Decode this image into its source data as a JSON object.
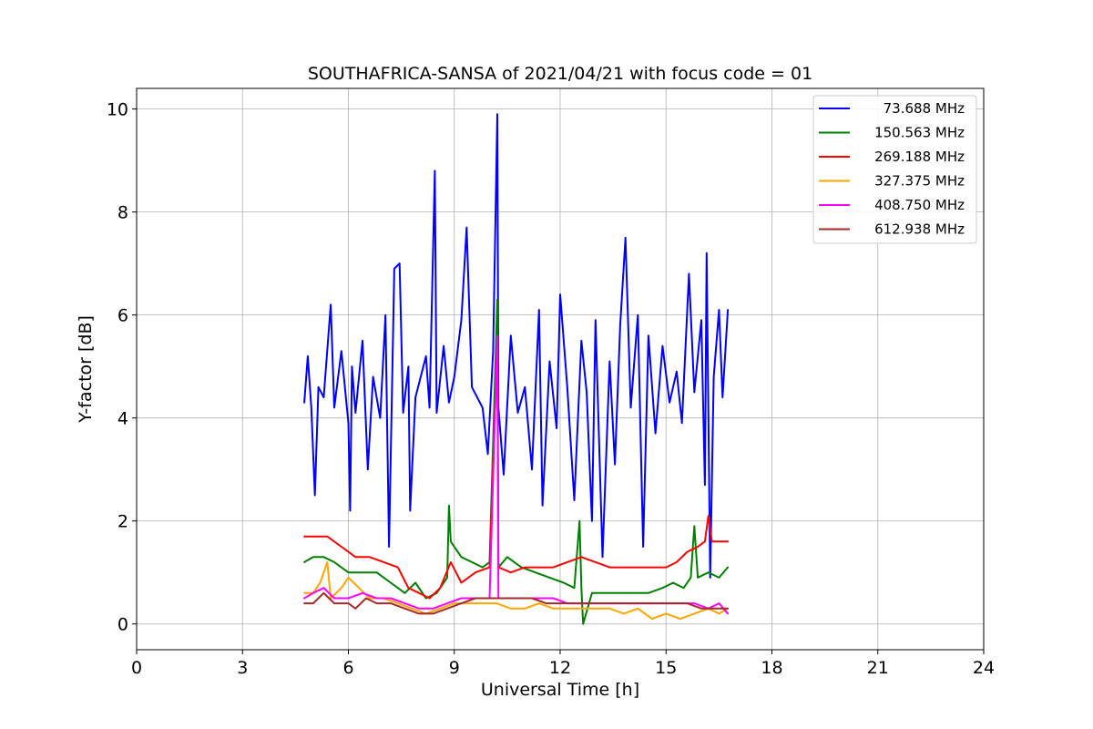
{
  "chart_data": {
    "type": "line",
    "title": "SOUTHAFRICA-SANSA of 2021/04/21 with focus code = 01",
    "xlabel": "Universal Time [h]",
    "ylabel": "Y-factor [dB]",
    "xlim": [
      0,
      24
    ],
    "ylim": [
      -0.5,
      10.4
    ],
    "xticks": [
      0,
      3,
      6,
      9,
      12,
      15,
      18,
      21,
      24
    ],
    "yticks": [
      0,
      2,
      4,
      6,
      8,
      10
    ],
    "grid": true,
    "legend_position": "top-right",
    "series": [
      {
        "name": "73.688 MHz",
        "color": "#0000ff",
        "points": [
          [
            4.75,
            4.3
          ],
          [
            4.85,
            5.2
          ],
          [
            4.95,
            4.2
          ],
          [
            5.05,
            2.5
          ],
          [
            5.15,
            4.6
          ],
          [
            5.3,
            4.4
          ],
          [
            5.5,
            6.2
          ],
          [
            5.6,
            4.2
          ],
          [
            5.8,
            5.3
          ],
          [
            6.0,
            3.9
          ],
          [
            6.05,
            2.2
          ],
          [
            6.1,
            5.0
          ],
          [
            6.2,
            4.1
          ],
          [
            6.4,
            5.5
          ],
          [
            6.55,
            3.0
          ],
          [
            6.7,
            4.8
          ],
          [
            6.9,
            4.0
          ],
          [
            7.05,
            6.0
          ],
          [
            7.15,
            1.5
          ],
          [
            7.3,
            6.9
          ],
          [
            7.45,
            7.0
          ],
          [
            7.55,
            4.1
          ],
          [
            7.7,
            5.0
          ],
          [
            7.75,
            2.2
          ],
          [
            7.9,
            4.4
          ],
          [
            8.2,
            5.2
          ],
          [
            8.3,
            4.2
          ],
          [
            8.45,
            8.8
          ],
          [
            8.5,
            4.1
          ],
          [
            8.7,
            5.4
          ],
          [
            8.85,
            4.3
          ],
          [
            9.0,
            4.8
          ],
          [
            9.2,
            5.9
          ],
          [
            9.35,
            7.7
          ],
          [
            9.5,
            4.6
          ],
          [
            9.8,
            4.2
          ],
          [
            9.95,
            3.3
          ],
          [
            10.1,
            5.3
          ],
          [
            10.22,
            9.9
          ],
          [
            10.25,
            4.2
          ],
          [
            10.4,
            2.9
          ],
          [
            10.6,
            5.6
          ],
          [
            10.8,
            4.1
          ],
          [
            11.0,
            4.6
          ],
          [
            11.2,
            3.0
          ],
          [
            11.4,
            6.1
          ],
          [
            11.5,
            2.3
          ],
          [
            11.7,
            5.1
          ],
          [
            11.9,
            3.8
          ],
          [
            12.0,
            6.4
          ],
          [
            12.2,
            4.6
          ],
          [
            12.4,
            2.4
          ],
          [
            12.6,
            5.5
          ],
          [
            12.75,
            4.5
          ],
          [
            12.9,
            2.0
          ],
          [
            13.0,
            5.9
          ],
          [
            13.2,
            1.3
          ],
          [
            13.4,
            5.1
          ],
          [
            13.55,
            3.1
          ],
          [
            13.7,
            5.8
          ],
          [
            13.85,
            7.5
          ],
          [
            14.0,
            4.2
          ],
          [
            14.2,
            6.0
          ],
          [
            14.35,
            1.5
          ],
          [
            14.5,
            5.6
          ],
          [
            14.7,
            3.7
          ],
          [
            14.9,
            5.4
          ],
          [
            15.1,
            4.3
          ],
          [
            15.3,
            4.9
          ],
          [
            15.45,
            3.9
          ],
          [
            15.65,
            6.8
          ],
          [
            15.8,
            4.5
          ],
          [
            16.0,
            5.9
          ],
          [
            16.1,
            2.7
          ],
          [
            16.15,
            7.2
          ],
          [
            16.25,
            0.9
          ],
          [
            16.35,
            4.8
          ],
          [
            16.5,
            6.1
          ],
          [
            16.6,
            4.4
          ],
          [
            16.75,
            6.1
          ]
        ]
      },
      {
        "name": "150.563 MHz",
        "color": "#008000",
        "points": [
          [
            4.75,
            1.2
          ],
          [
            5.0,
            1.3
          ],
          [
            5.3,
            1.3
          ],
          [
            5.6,
            1.2
          ],
          [
            6.0,
            1.0
          ],
          [
            6.4,
            1.0
          ],
          [
            6.8,
            1.0
          ],
          [
            7.2,
            0.8
          ],
          [
            7.6,
            0.6
          ],
          [
            7.9,
            0.8
          ],
          [
            8.2,
            0.5
          ],
          [
            8.5,
            0.6
          ],
          [
            8.8,
            0.9
          ],
          [
            8.85,
            2.3
          ],
          [
            8.9,
            1.6
          ],
          [
            9.2,
            1.3
          ],
          [
            9.5,
            1.2
          ],
          [
            9.8,
            1.1
          ],
          [
            10.0,
            1.2
          ],
          [
            10.22,
            6.3
          ],
          [
            10.25,
            1.1
          ],
          [
            10.5,
            1.3
          ],
          [
            10.9,
            1.1
          ],
          [
            11.3,
            1.0
          ],
          [
            11.7,
            0.9
          ],
          [
            12.1,
            0.8
          ],
          [
            12.4,
            0.7
          ],
          [
            12.55,
            2.0
          ],
          [
            12.6,
            0.7
          ],
          [
            12.65,
            0.0
          ],
          [
            12.9,
            0.6
          ],
          [
            13.3,
            0.6
          ],
          [
            13.7,
            0.6
          ],
          [
            14.1,
            0.6
          ],
          [
            14.5,
            0.6
          ],
          [
            14.9,
            0.7
          ],
          [
            15.2,
            0.8
          ],
          [
            15.5,
            0.7
          ],
          [
            15.7,
            0.9
          ],
          [
            15.8,
            1.9
          ],
          [
            15.9,
            0.9
          ],
          [
            16.2,
            1.0
          ],
          [
            16.5,
            0.9
          ],
          [
            16.75,
            1.1
          ]
        ]
      },
      {
        "name": "269.188 MHz",
        "color": "#ff0000",
        "points": [
          [
            4.75,
            1.7
          ],
          [
            5.0,
            1.7
          ],
          [
            5.4,
            1.7
          ],
          [
            5.8,
            1.5
          ],
          [
            6.2,
            1.3
          ],
          [
            6.6,
            1.3
          ],
          [
            7.0,
            1.2
          ],
          [
            7.4,
            1.1
          ],
          [
            7.7,
            0.7
          ],
          [
            8.0,
            0.6
          ],
          [
            8.3,
            0.5
          ],
          [
            8.6,
            0.7
          ],
          [
            8.9,
            1.2
          ],
          [
            9.2,
            0.8
          ],
          [
            9.6,
            1.0
          ],
          [
            10.0,
            1.1
          ],
          [
            10.22,
            5.4
          ],
          [
            10.25,
            1.1
          ],
          [
            10.6,
            1.0
          ],
          [
            11.0,
            1.1
          ],
          [
            11.4,
            1.1
          ],
          [
            11.8,
            1.1
          ],
          [
            12.2,
            1.2
          ],
          [
            12.6,
            1.3
          ],
          [
            13.0,
            1.2
          ],
          [
            13.4,
            1.1
          ],
          [
            13.8,
            1.1
          ],
          [
            14.2,
            1.1
          ],
          [
            14.6,
            1.1
          ],
          [
            15.0,
            1.1
          ],
          [
            15.3,
            1.2
          ],
          [
            15.6,
            1.4
          ],
          [
            15.9,
            1.5
          ],
          [
            16.1,
            1.6
          ],
          [
            16.2,
            2.1
          ],
          [
            16.3,
            1.6
          ],
          [
            16.5,
            1.6
          ],
          [
            16.75,
            1.6
          ]
        ]
      },
      {
        "name": "327.375 MHz",
        "color": "#ffa500",
        "points": [
          [
            4.75,
            0.6
          ],
          [
            5.0,
            0.6
          ],
          [
            5.2,
            0.8
          ],
          [
            5.4,
            1.2
          ],
          [
            5.5,
            0.5
          ],
          [
            5.8,
            0.7
          ],
          [
            6.0,
            0.9
          ],
          [
            6.3,
            0.7
          ],
          [
            6.6,
            0.5
          ],
          [
            7.0,
            0.5
          ],
          [
            7.4,
            0.4
          ],
          [
            7.8,
            0.3
          ],
          [
            8.2,
            0.2
          ],
          [
            8.6,
            0.3
          ],
          [
            9.0,
            0.4
          ],
          [
            9.4,
            0.4
          ],
          [
            9.8,
            0.4
          ],
          [
            10.2,
            0.4
          ],
          [
            10.6,
            0.3
          ],
          [
            11.0,
            0.3
          ],
          [
            11.4,
            0.4
          ],
          [
            11.8,
            0.3
          ],
          [
            12.2,
            0.3
          ],
          [
            12.6,
            0.3
          ],
          [
            13.0,
            0.3
          ],
          [
            13.4,
            0.3
          ],
          [
            13.8,
            0.2
          ],
          [
            14.2,
            0.3
          ],
          [
            14.6,
            0.1
          ],
          [
            15.0,
            0.2
          ],
          [
            15.4,
            0.1
          ],
          [
            15.8,
            0.2
          ],
          [
            16.2,
            0.3
          ],
          [
            16.5,
            0.2
          ],
          [
            16.75,
            0.3
          ]
        ]
      },
      {
        "name": "408.750 MHz",
        "color": "#ff00ff",
        "points": [
          [
            4.75,
            0.5
          ],
          [
            5.0,
            0.6
          ],
          [
            5.3,
            0.7
          ],
          [
            5.6,
            0.5
          ],
          [
            6.0,
            0.5
          ],
          [
            6.4,
            0.6
          ],
          [
            6.8,
            0.5
          ],
          [
            7.2,
            0.5
          ],
          [
            7.6,
            0.4
          ],
          [
            8.0,
            0.3
          ],
          [
            8.4,
            0.3
          ],
          [
            8.8,
            0.4
          ],
          [
            9.2,
            0.5
          ],
          [
            9.6,
            0.5
          ],
          [
            10.0,
            0.5
          ],
          [
            10.22,
            5.6
          ],
          [
            10.25,
            0.5
          ],
          [
            10.6,
            0.5
          ],
          [
            11.0,
            0.5
          ],
          [
            11.4,
            0.5
          ],
          [
            11.8,
            0.5
          ],
          [
            12.2,
            0.4
          ],
          [
            12.6,
            0.4
          ],
          [
            13.0,
            0.4
          ],
          [
            13.4,
            0.4
          ],
          [
            13.8,
            0.4
          ],
          [
            14.2,
            0.4
          ],
          [
            14.6,
            0.4
          ],
          [
            15.0,
            0.4
          ],
          [
            15.4,
            0.4
          ],
          [
            15.8,
            0.4
          ],
          [
            16.2,
            0.3
          ],
          [
            16.5,
            0.4
          ],
          [
            16.75,
            0.2
          ]
        ]
      },
      {
        "name": "612.938 MHz",
        "color": "#a52a2a",
        "points": [
          [
            4.75,
            0.4
          ],
          [
            5.0,
            0.4
          ],
          [
            5.3,
            0.6
          ],
          [
            5.6,
            0.4
          ],
          [
            6.0,
            0.4
          ],
          [
            6.2,
            0.3
          ],
          [
            6.5,
            0.5
          ],
          [
            6.8,
            0.4
          ],
          [
            7.2,
            0.4
          ],
          [
            7.6,
            0.3
          ],
          [
            8.0,
            0.2
          ],
          [
            8.4,
            0.2
          ],
          [
            8.8,
            0.3
          ],
          [
            9.2,
            0.4
          ],
          [
            9.6,
            0.5
          ],
          [
            10.0,
            0.5
          ],
          [
            10.4,
            0.5
          ],
          [
            10.8,
            0.5
          ],
          [
            11.2,
            0.5
          ],
          [
            11.6,
            0.4
          ],
          [
            12.0,
            0.4
          ],
          [
            12.4,
            0.4
          ],
          [
            12.8,
            0.4
          ],
          [
            13.2,
            0.4
          ],
          [
            13.6,
            0.4
          ],
          [
            14.0,
            0.4
          ],
          [
            14.4,
            0.4
          ],
          [
            14.8,
            0.4
          ],
          [
            15.2,
            0.4
          ],
          [
            15.6,
            0.4
          ],
          [
            16.0,
            0.3
          ],
          [
            16.4,
            0.3
          ],
          [
            16.75,
            0.3
          ]
        ]
      }
    ]
  }
}
